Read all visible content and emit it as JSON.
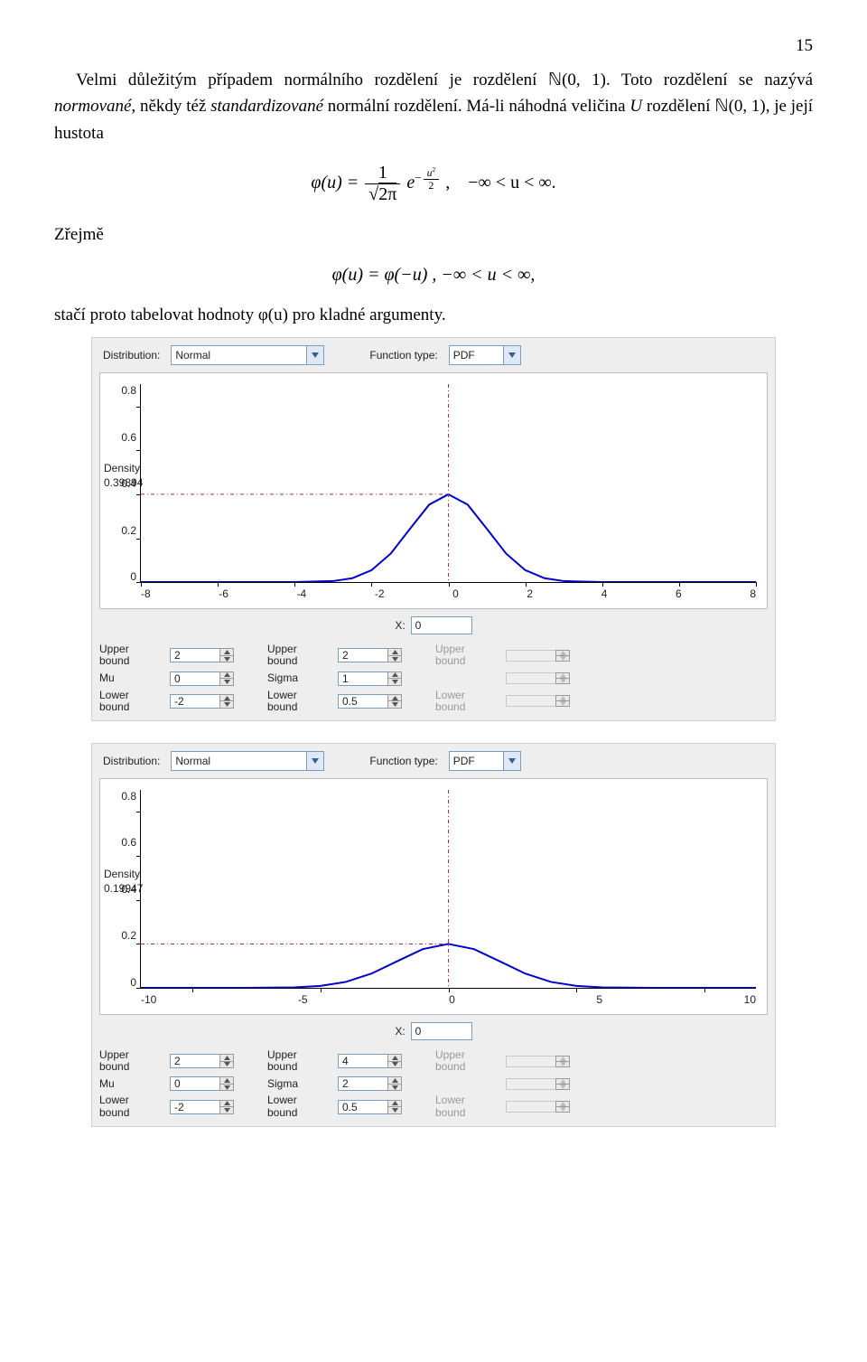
{
  "page_number": "15",
  "text": {
    "p1a": "Velmi důležitým případem normálního rozdělení je rozdělení ",
    "p1b": "(0, 1). Toto rozdělení se nazývá ",
    "p1c": "normované",
    "p1d": ", někdy též ",
    "p1e": "standardizované",
    "p1f": " normální rozdělení. Má-li náhodná veličina ",
    "p1g": " rozdělení ",
    "p1h": "(0, 1), je její hustota",
    "zrejme": "Zřejmě",
    "p2": "stačí proto tabelovat hodnoty φ(u) pro kladné argumenty."
  },
  "eq1": {
    "lhs": "φ(u) = ",
    "num": "1",
    "den_inner": "2π",
    "exp_prefix": "e",
    "exp_num": "u",
    "exp_den": "2",
    "range": "−∞ < u < ∞."
  },
  "eq2": {
    "text": "φ(u) = φ(−u) ,    −∞ < u < ∞,"
  },
  "panel1": {
    "dist_label": "Distribution:",
    "dist_value": "Normal",
    "ftype_label": "Function type:",
    "ftype_value": "PDF",
    "density_label": "Density",
    "density_value": "0.39894",
    "yticks": [
      "0.8",
      "0.6",
      "0.4",
      "0.2",
      "0"
    ],
    "xticks": [
      "-8",
      "-6",
      "-4",
      "-2",
      "0",
      "2",
      "4",
      "6",
      "8"
    ],
    "x_label": "X:",
    "x_value": "0",
    "mu_label": "Mu",
    "mu_value": "0",
    "sigma_label": "Sigma",
    "sigma_value": "1",
    "ub_label": "Upper\nbound",
    "lb_label": "Lower\nbound",
    "ub1": "2",
    "lb1": "-2",
    "ub2": "2",
    "lb2": "0.5",
    "curve": {
      "type": "line",
      "color": "#0000cd",
      "line_width": 2,
      "x": [
        -8,
        -6,
        -5,
        -4,
        -3,
        -2.5,
        -2,
        -1.5,
        -1,
        -0.5,
        0,
        0.5,
        1,
        1.5,
        2,
        2.5,
        3,
        4,
        5,
        6,
        8
      ],
      "y": [
        0,
        0,
        0,
        0.0001,
        0.0044,
        0.0175,
        0.054,
        0.1295,
        0.242,
        0.3521,
        0.3989,
        0.3521,
        0.242,
        0.1295,
        0.054,
        0.0175,
        0.0044,
        0.0001,
        0,
        0,
        0
      ],
      "xlim": [
        -8,
        8
      ],
      "ylim": [
        0,
        0.9
      ],
      "marker_line_color": "#b03030",
      "marker_x": 0,
      "background": "#ffffff"
    }
  },
  "panel2": {
    "dist_label": "Distribution:",
    "dist_value": "Normal",
    "ftype_label": "Function type:",
    "ftype_value": "PDF",
    "density_label": "Density",
    "density_value": "0.19947",
    "yticks": [
      "0.8",
      "0.6",
      "0.4",
      "0.2",
      "0"
    ],
    "xticks": [
      "-10",
      "-5",
      "0",
      "5",
      "10"
    ],
    "x_label": "X:",
    "x_value": "0",
    "mu_label": "Mu",
    "mu_value": "0",
    "sigma_label": "Sigma",
    "sigma_value": "2",
    "ub_label": "Upper\nbound",
    "lb_label": "Lower\nbound",
    "ub1": "2",
    "lb1": "-2",
    "ub2": "4",
    "lb2": "0.5",
    "curve": {
      "type": "line",
      "color": "#0000cd",
      "line_width": 2,
      "x": [
        -12,
        -10,
        -8,
        -6,
        -5,
        -4,
        -3,
        -2,
        -1,
        0,
        1,
        2,
        3,
        4,
        5,
        6,
        8,
        10,
        12
      ],
      "y": [
        0,
        0,
        0.0001,
        0.0022,
        0.0088,
        0.027,
        0.0648,
        0.121,
        0.176,
        0.1995,
        0.176,
        0.121,
        0.0648,
        0.027,
        0.0088,
        0.0022,
        0.0001,
        0,
        0
      ],
      "xlim": [
        -12,
        12
      ],
      "ylim": [
        0,
        0.9
      ],
      "marker_line_color": "#b03030",
      "marker_x": 0,
      "background": "#ffffff"
    }
  }
}
